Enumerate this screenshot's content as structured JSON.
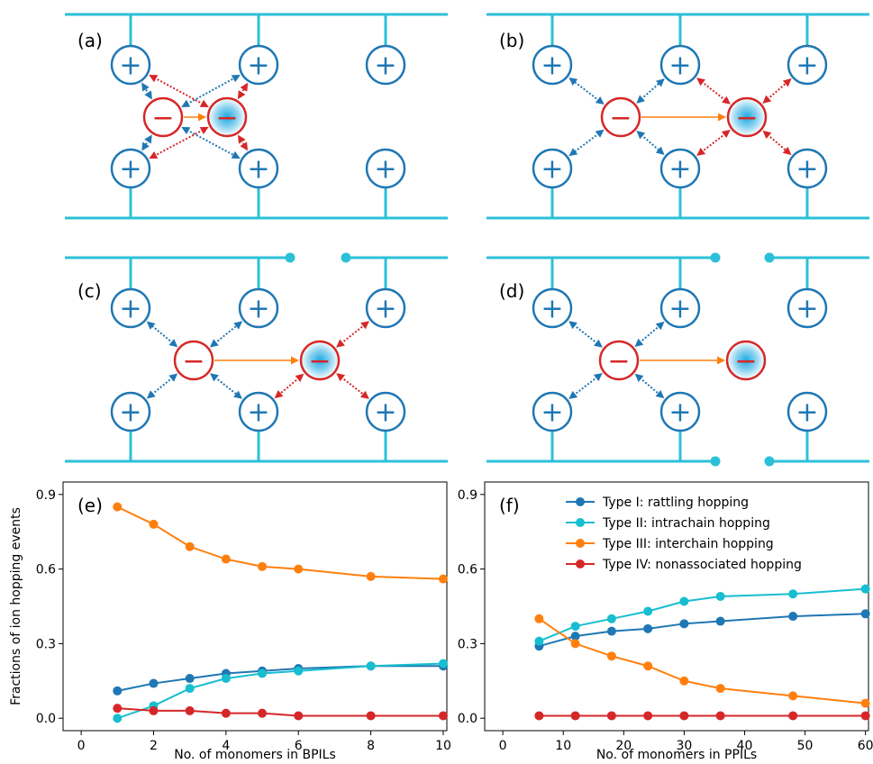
{
  "panels": {
    "a": "(a)",
    "b": "(b)",
    "c": "(c)",
    "d": "(d)",
    "e": "(e)",
    "f": "(f)"
  },
  "symbols": {
    "plus": "+",
    "minus": "−"
  },
  "colors": {
    "chain": "#2cc0d8",
    "cation": "#1f77b4",
    "anion": "#d62728",
    "hop_arrow": "#ff7f0e",
    "type1": "#1f77b4",
    "type2": "#17becf",
    "type3": "#ff7f0e",
    "type4": "#d62728"
  },
  "chart_data": [
    {
      "id": "e",
      "type": "line",
      "ylabel": "Fractions of ion hopping events",
      "xlabel": "No. of monomers in BPILs",
      "xlim": [
        -0.5,
        10.1
      ],
      "ylim": [
        -0.05,
        0.95
      ],
      "xticks": [
        0,
        2,
        4,
        6,
        8,
        10
      ],
      "yticks": [
        0.0,
        0.3,
        0.6,
        0.9
      ],
      "ytick_labels": [
        "0.0",
        "0.3",
        "0.6",
        "0.9"
      ],
      "x": [
        1,
        2,
        3,
        4,
        5,
        6,
        8,
        10
      ],
      "series": [
        {
          "name": "Type I: rattling hopping",
          "color": "#1f77b4",
          "values": [
            0.11,
            0.14,
            0.16,
            0.18,
            0.19,
            0.2,
            0.21,
            0.21
          ]
        },
        {
          "name": "Type II: intrachain hopping",
          "color": "#17becf",
          "values": [
            0.0,
            0.05,
            0.12,
            0.16,
            0.18,
            0.19,
            0.21,
            0.22
          ]
        },
        {
          "name": "Type III: interchain hopping",
          "color": "#ff7f0e",
          "values": [
            0.85,
            0.78,
            0.69,
            0.64,
            0.61,
            0.6,
            0.57,
            0.56
          ]
        },
        {
          "name": "Type IV: nonassociated hopping",
          "color": "#d62728",
          "values": [
            0.04,
            0.03,
            0.03,
            0.02,
            0.02,
            0.01,
            0.01,
            0.01
          ]
        }
      ]
    },
    {
      "id": "f",
      "type": "line",
      "xlabel": "No. of monomers in PPILs",
      "xlim": [
        -3,
        60.5
      ],
      "ylim": [
        -0.05,
        0.95
      ],
      "xticks": [
        0,
        10,
        20,
        30,
        40,
        50,
        60
      ],
      "yticks": [
        0.0,
        0.3,
        0.6,
        0.9
      ],
      "ytick_labels": [
        "0.0",
        "0.3",
        "0.6",
        "0.9"
      ],
      "legend": "top-right",
      "x": [
        6,
        12,
        18,
        24,
        30,
        36,
        48,
        60
      ],
      "series": [
        {
          "name": "Type I: rattling hopping",
          "color": "#1f77b4",
          "values": [
            0.29,
            0.33,
            0.35,
            0.36,
            0.38,
            0.39,
            0.41,
            0.42
          ]
        },
        {
          "name": "Type II: intrachain hopping",
          "color": "#17becf",
          "values": [
            0.31,
            0.37,
            0.4,
            0.43,
            0.47,
            0.49,
            0.5,
            0.52
          ]
        },
        {
          "name": "Type III: interchain hopping",
          "color": "#ff7f0e",
          "values": [
            0.4,
            0.3,
            0.25,
            0.21,
            0.15,
            0.12,
            0.09,
            0.06
          ]
        },
        {
          "name": "Type IV: nonassociated hopping",
          "color": "#d62728",
          "values": [
            0.01,
            0.01,
            0.01,
            0.01,
            0.01,
            0.01,
            0.01,
            0.01
          ]
        }
      ]
    }
  ]
}
